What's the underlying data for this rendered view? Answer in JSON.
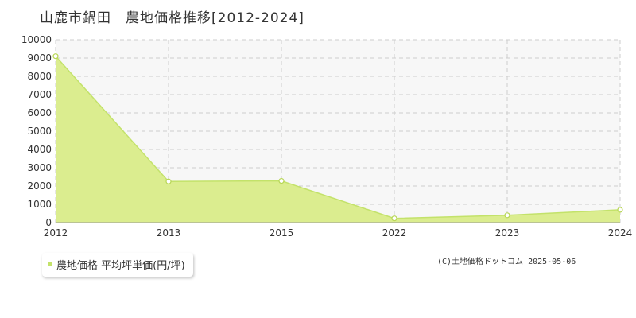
{
  "title": "山鹿市鍋田　農地価格推移[2012-2024]",
  "credit": "(C)土地価格ドットコム 2025-05-06",
  "colors": {
    "fill": "#dbed8f",
    "line": "#c3e26a",
    "marker_stroke": "#b7d655",
    "grid": "#cccccc",
    "plot_bg": "#f7f7f7"
  },
  "chart_data": {
    "type": "area",
    "categories": [
      "2012",
      "2013",
      "2015",
      "2022",
      "2023",
      "2024"
    ],
    "series": [
      {
        "name": "農地価格 平均坪単価(円/坪)",
        "values": [
          9100,
          2250,
          2280,
          230,
          400,
          700
        ]
      }
    ],
    "ylim": [
      0,
      10000
    ],
    "yticks": [
      0,
      1000,
      2000,
      3000,
      4000,
      5000,
      6000,
      7000,
      8000,
      9000,
      10000
    ],
    "grid": true,
    "legend_position": "bottom-left"
  }
}
